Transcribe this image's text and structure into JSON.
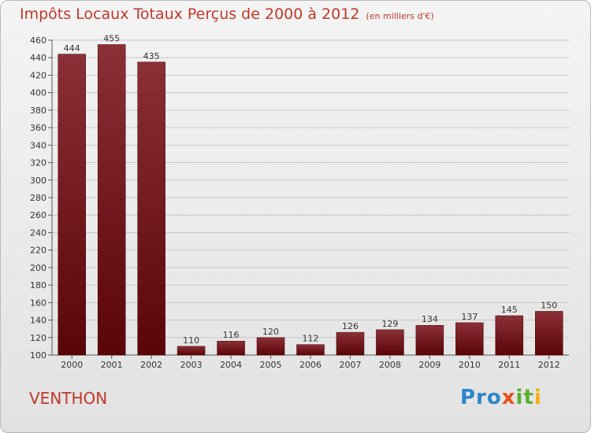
{
  "title": "Impôts Locaux Totaux Perçus de 2000 à 2012",
  "title_unit": "(en milliers d'€)",
  "commune": "VENTHON",
  "logo": {
    "l1": "Pro",
    "l2": "x",
    "l3": "it",
    "l4": "i"
  },
  "colors": {
    "bar_top": "#8a3036",
    "bar_bottom": "#5a0508",
    "title": "#c0392b"
  },
  "chart_data": {
    "type": "bar",
    "categories": [
      "2000",
      "2001",
      "2002",
      "2003",
      "2004",
      "2005",
      "2006",
      "2007",
      "2008",
      "2009",
      "2010",
      "2011",
      "2012"
    ],
    "values": [
      444,
      455,
      435,
      110,
      116,
      120,
      112,
      126,
      129,
      134,
      137,
      145,
      150
    ],
    "ylim": [
      100,
      460
    ],
    "yticks": [
      100,
      120,
      140,
      160,
      180,
      200,
      220,
      240,
      260,
      280,
      300,
      320,
      340,
      360,
      380,
      400,
      420,
      440,
      460
    ],
    "grid": true
  }
}
